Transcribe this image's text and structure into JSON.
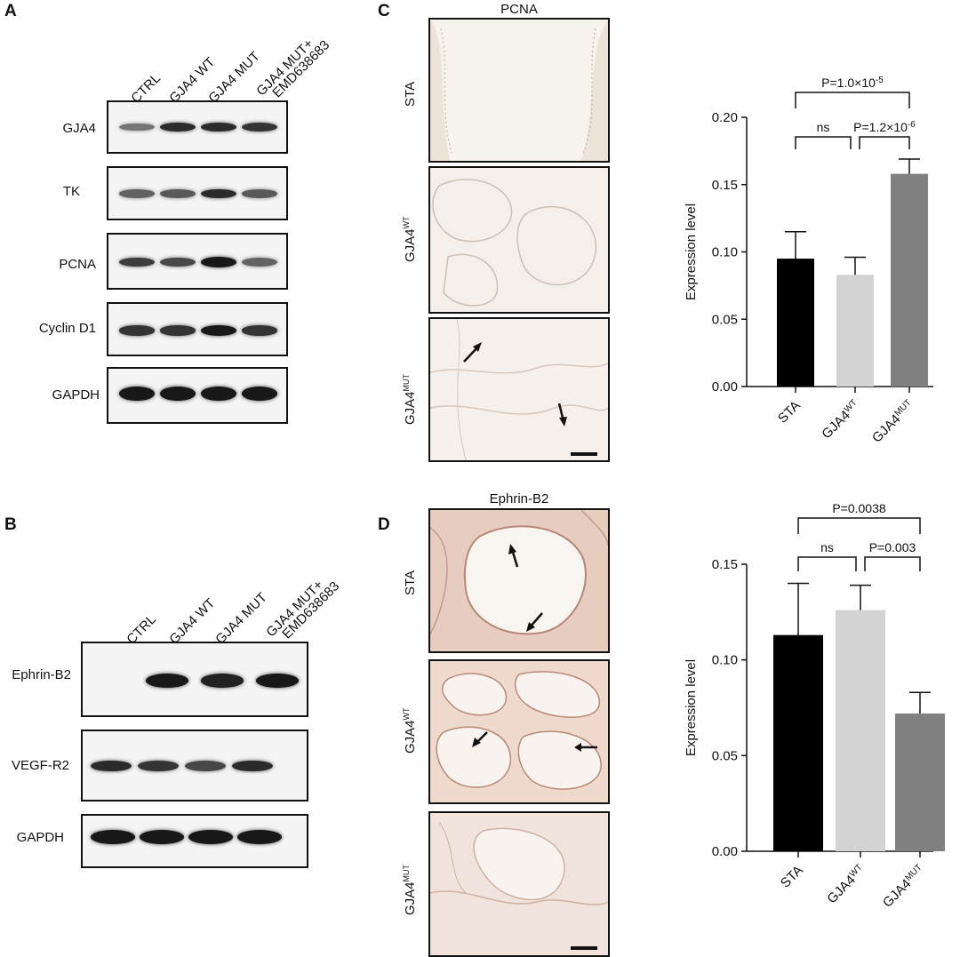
{
  "panels": {
    "A": "A",
    "B": "B",
    "C": "C",
    "D": "D"
  },
  "blotA": {
    "lanes": [
      "CTRL",
      "GJA4 WT",
      "GJA4 MUT",
      "GJA4 MUT+",
      "EMD638683"
    ],
    "rows": [
      {
        "label": "GJA4",
        "intensity": [
          0.45,
          0.85,
          0.85,
          0.8
        ]
      },
      {
        "label": "TK",
        "intensity": [
          0.55,
          0.6,
          0.85,
          0.6
        ]
      },
      {
        "label": "PCNA",
        "intensity": [
          0.75,
          0.7,
          0.95,
          0.55
        ]
      },
      {
        "label": "Cyclin D1",
        "intensity": [
          0.8,
          0.8,
          0.95,
          0.8
        ]
      },
      {
        "label": "GAPDH",
        "intensity": [
          0.95,
          0.95,
          0.95,
          0.95
        ]
      }
    ]
  },
  "blotB": {
    "lanes": [
      "CTRL",
      "GJA4 WT",
      "GJA4 MUT",
      "GJA4 MUT+",
      "EMD638683"
    ],
    "rows": [
      {
        "label": "Ephrin-B2",
        "intensity": [
          0,
          0.95,
          0.9,
          0.95
        ]
      },
      {
        "label": "VEGF-R2",
        "intensity": [
          0.85,
          0.8,
          0.7,
          0.85
        ]
      },
      {
        "label": "GAPDH",
        "intensity": [
          0.95,
          0.95,
          0.95,
          0.95
        ]
      }
    ]
  },
  "microC": {
    "title": "PCNA",
    "rows": [
      {
        "base": "STA",
        "sup": ""
      },
      {
        "base": "GJA4",
        "sup": "WT"
      },
      {
        "base": "GJA4",
        "sup": "MUT"
      }
    ]
  },
  "microD": {
    "title": "Ephrin-B2",
    "rows": [
      {
        "base": "STA",
        "sup": ""
      },
      {
        "base": "GJA4",
        "sup": "WT"
      },
      {
        "base": "GJA4",
        "sup": "MUT"
      }
    ]
  },
  "chart_data": [
    {
      "type": "bar",
      "ylabel": "Expression level",
      "xlabel": "",
      "ylim": [
        0,
        0.2
      ],
      "yticks": [
        "0.00",
        "0.05",
        "0.10",
        "0.15",
        "0.20"
      ],
      "categories": [
        {
          "base": "STA",
          "sup": ""
        },
        {
          "base": "GJA4",
          "sup": "WT"
        },
        {
          "base": "GJA4",
          "sup": "MUT"
        }
      ],
      "values": [
        0.095,
        0.083,
        0.158
      ],
      "errors": [
        0.02,
        0.013,
        0.011
      ],
      "colors": [
        "#000000",
        "#d3d3d3",
        "#808080"
      ],
      "comparisons": [
        {
          "from": 0,
          "to": 1,
          "label": "ns",
          "level": 1
        },
        {
          "from": 1,
          "to": 2,
          "base": "P=1.2×10",
          "sup": "-6",
          "level": 1
        },
        {
          "from": 0,
          "to": 2,
          "base": "P=1.0×10",
          "sup": "-5",
          "level": 2
        }
      ]
    },
    {
      "type": "bar",
      "ylabel": "Expression level",
      "xlabel": "",
      "ylim": [
        0,
        0.15
      ],
      "yticks": [
        "0.00",
        "0.05",
        "0.10",
        "0.15"
      ],
      "categories": [
        {
          "base": "STA",
          "sup": ""
        },
        {
          "base": "GJA4",
          "sup": "WT"
        },
        {
          "base": "GJA4",
          "sup": "MUT"
        }
      ],
      "values": [
        0.113,
        0.126,
        0.072
      ],
      "errors": [
        0.027,
        0.013,
        0.011
      ],
      "colors": [
        "#000000",
        "#d3d3d3",
        "#808080"
      ],
      "comparisons": [
        {
          "from": 0,
          "to": 1,
          "label": "ns",
          "level": 1
        },
        {
          "from": 1,
          "to": 2,
          "base": "P=0.003",
          "sup": "",
          "level": 1
        },
        {
          "from": 0,
          "to": 2,
          "base": "P=0.0038",
          "sup": "",
          "level": 2
        }
      ]
    }
  ]
}
